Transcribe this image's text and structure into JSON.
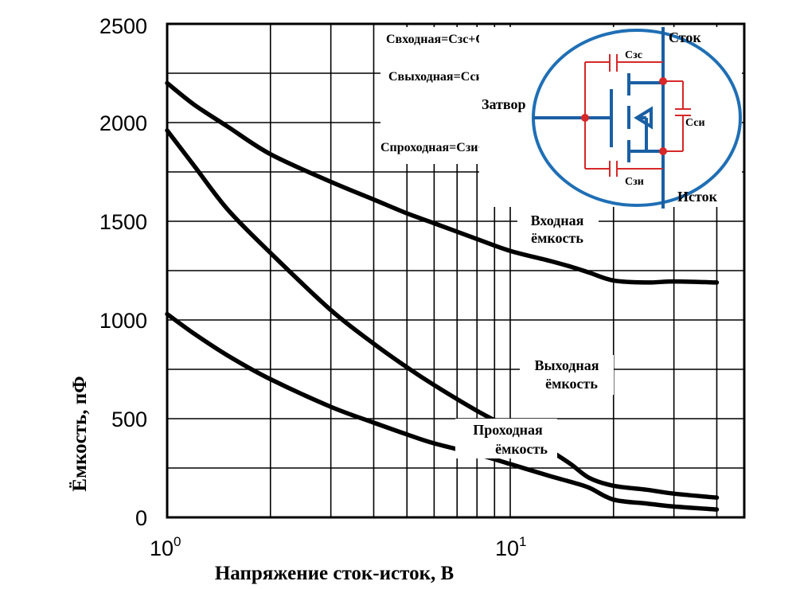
{
  "chart_data": {
    "type": "line",
    "title": "",
    "xlabel": "Напряжение сток-исток, В",
    "ylabel": "Ёмкость, пФ",
    "xscale": "log",
    "xlim": [
      1,
      40
    ],
    "ylim": [
      0,
      2500
    ],
    "grid": true,
    "y_ticks": [
      "0",
      "500",
      "1000",
      "1500",
      "2000",
      "2500"
    ],
    "x_ticks": [
      {
        "base": "10",
        "exp": "0"
      },
      {
        "base": "10",
        "exp": "1"
      }
    ],
    "series": [
      {
        "name": "Входная ёмкость",
        "x": [
          1,
          1.2,
          1.5,
          2,
          3,
          4,
          5,
          6,
          8,
          10,
          13,
          15,
          17,
          20,
          25,
          30,
          40
        ],
        "y": [
          2200,
          2090,
          1980,
          1840,
          1700,
          1610,
          1540,
          1490,
          1410,
          1350,
          1300,
          1270,
          1240,
          1200,
          1190,
          1195,
          1190
        ]
      },
      {
        "name": "Выходная ёмкость",
        "x": [
          1,
          1.2,
          1.5,
          2,
          3,
          4,
          5,
          6,
          8,
          10,
          13,
          15,
          17,
          20,
          25,
          30,
          40
        ],
        "y": [
          1960,
          1780,
          1560,
          1340,
          1050,
          880,
          760,
          670,
          540,
          450,
          340,
          270,
          200,
          160,
          140,
          120,
          100
        ]
      },
      {
        "name": "Проходная ёмкость",
        "x": [
          1,
          1.2,
          1.5,
          2,
          3,
          4,
          5,
          6,
          8,
          10,
          13,
          15,
          17,
          20,
          25,
          30,
          40
        ],
        "y": [
          1030,
          930,
          820,
          700,
          560,
          480,
          420,
          375,
          320,
          270,
          210,
          180,
          150,
          90,
          70,
          55,
          40
        ]
      }
    ]
  },
  "labels": {
    "input": [
      "Входная",
      "ёмкость"
    ],
    "output": [
      "Выходная",
      "ёмкость"
    ],
    "reverse": [
      "Проходная",
      "ёмкость"
    ]
  },
  "formulas": {
    "input": "Свходная=Сзс+Сзи",
    "output": "Свыходная=Сси",
    "reverse": "Спроходная=Сзи+Сси"
  },
  "schematic": {
    "drain": "Сток",
    "source": "Исток",
    "gate": "Затвор",
    "cgd": "Сзс",
    "cgs": "Сзи",
    "cds": "Сси",
    "colors": {
      "circle": "#1f6fb5",
      "wire": "#1a5fa3",
      "cap": "#d62828",
      "background": "#ffffff"
    }
  }
}
